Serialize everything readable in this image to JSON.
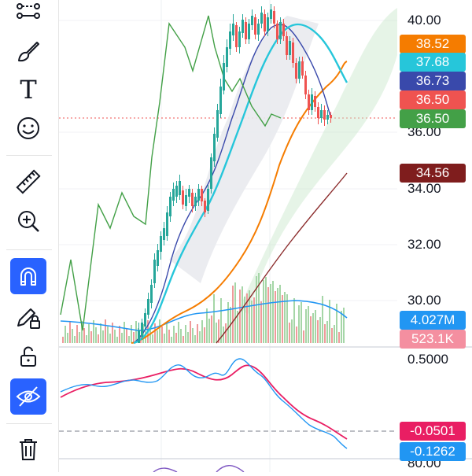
{
  "toolbar": {
    "tools": [
      {
        "name": "trend-line-tool",
        "active": false
      },
      {
        "name": "brush-tool",
        "active": false
      },
      {
        "name": "text-tool",
        "active": false,
        "glyph": "T"
      },
      {
        "name": "emoji-tool",
        "active": false
      },
      {
        "name": "ruler-tool",
        "active": false
      },
      {
        "name": "zoom-in-tool",
        "active": false
      },
      {
        "name": "magnet-tool",
        "active": true
      },
      {
        "name": "lock-drawings-tool",
        "active": false
      },
      {
        "name": "unlock-tool",
        "active": false
      },
      {
        "name": "hide-drawings-tool",
        "active": true
      },
      {
        "name": "delete-tool",
        "active": false
      }
    ]
  },
  "price_axis": {
    "ticks": [
      "40.00",
      "36.00",
      "34.00",
      "32.00",
      "30.00"
    ],
    "tags": [
      {
        "label": "38.52",
        "color": "#f57c00"
      },
      {
        "label": "37.68",
        "color": "#26c6da"
      },
      {
        "label": "36.73",
        "color": "#3949ab"
      },
      {
        "label": "36.50",
        "color": "#ef5350"
      },
      {
        "label": "36.50",
        "color": "#43a047"
      },
      {
        "label": "34.56",
        "color": "#7f1d1d"
      }
    ]
  },
  "volume_tags": [
    {
      "label": "4.027M",
      "color": "#2196f3"
    },
    {
      "label": "523.1K",
      "color": "#f48fa0"
    }
  ],
  "macd_axis": {
    "ticks": [
      "0.5000",
      "80.00"
    ],
    "tags": [
      {
        "label": "-0.0501",
        "color": "#e91e63"
      },
      {
        "label": "-0.1262",
        "color": "#2196f3"
      }
    ]
  },
  "colors": {
    "up": "#26a69a",
    "down": "#ef5350",
    "ma_fast": "#3949ab",
    "ma_mid": "#26c6da",
    "ma_slow": "#f57c00",
    "ma_long": "#8b2b2b",
    "lagging": "#43a047",
    "macd": "#2196f3",
    "signal": "#e91e63",
    "accent": "#2962ff"
  }
}
